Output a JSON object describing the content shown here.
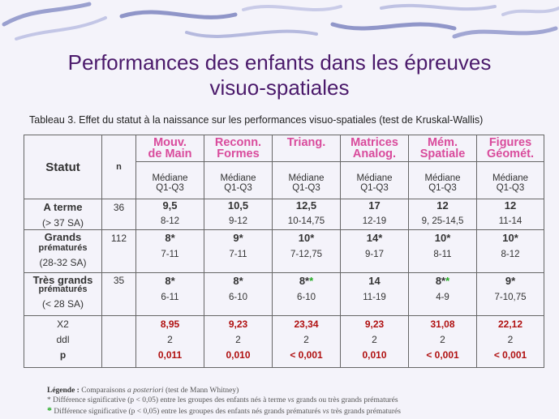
{
  "title_line1": "Performances des enfants dans les épreuves",
  "title_line2": "visuo-spatiales",
  "caption": "Tableau 3. Effet du statut à la naissance sur les performances visuo-spatiales (test de Kruskal-Wallis)",
  "header": {
    "statut": "Statut",
    "n": "n",
    "cols": [
      {
        "l1": "Mouv.",
        "l2": "de Main"
      },
      {
        "l1": "Reconn.",
        "l2": "Formes"
      },
      {
        "l1": "Triang.",
        "l2": ""
      },
      {
        "l1": "Matrices",
        "l2": "Analog."
      },
      {
        "l1": "Mém.",
        "l2": "Spatiale"
      },
      {
        "l1": "Figures",
        "l2": "Géomét."
      }
    ],
    "mediane": "Médiane",
    "q": "Q1-Q3"
  },
  "rows": [
    {
      "l1": "A terme",
      "l2": "(> 37 SA)",
      "n": "36",
      "med": [
        "9,5",
        "10,5",
        "12,5",
        "17",
        "12",
        "12"
      ],
      "rng": [
        "8-12",
        "9-12",
        "10-14,75",
        "12-19",
        "9, 25-14,5",
        "11-14"
      ]
    },
    {
      "l1": "Grands",
      "l1b": "prématurés",
      "l2": "(28-32 SA)",
      "n": "112",
      "med": [
        "8*",
        "9*",
        "10*",
        "14*",
        "10*",
        "10*"
      ],
      "rng": [
        "7-11",
        "7-11",
        "7-12,75",
        "9-17",
        "8-11",
        "8-12"
      ]
    },
    {
      "l1": "Très grands",
      "l1b": "prématurés",
      "l2": "(< 28 SA)",
      "n": "35",
      "med": [
        "8*",
        "8*",
        "8*",
        "14",
        "8*",
        "9*"
      ],
      "green": [
        "",
        "",
        "*",
        "",
        "*",
        ""
      ],
      "rng": [
        "6-11",
        "6-10",
        "6-10",
        "11-19",
        "4-9",
        "7-10,75"
      ]
    }
  ],
  "stats": {
    "x2_label": "X2",
    "ddl_label": "ddl",
    "p_label": "p",
    "x2": [
      "8,95",
      "9,23",
      "23,34",
      "9,23",
      "31,08",
      "22,12"
    ],
    "ddl": [
      "2",
      "2",
      "2",
      "2",
      "2",
      "2"
    ],
    "p": [
      "0,011",
      "0,010",
      "< 0,001",
      "0,010",
      "< 0,001",
      "< 0,001"
    ]
  },
  "legend": {
    "head": "Légende :",
    "head_rest_a": " Comparaisons ",
    "head_rest_b": "a posteriori",
    "head_rest_c": " (test de Mann Whitney)",
    "line1_star": "*",
    "line1_a": " Différence significative (p < 0,05) entre les groupes des enfants nés à terme ",
    "line1_vs": "vs",
    "line1_b": " grands ou très grands prématurés",
    "line2_star": "*",
    "line2_a": " Différence significative (p < 0,05) entre les groupes des enfants nés grands prématurés ",
    "line2_vs": "vs",
    "line2_b": " très grands prématurés"
  }
}
